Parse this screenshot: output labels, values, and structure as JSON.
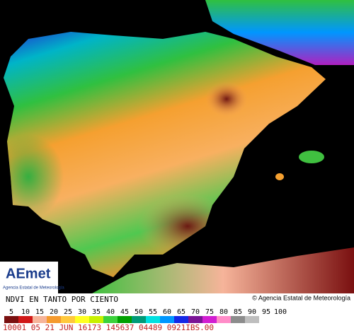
{
  "logo": {
    "name": "AEmet",
    "subtitle": "Agencia Estatal de Meteorología"
  },
  "credit": "© Agencia Estatal de Meteorología",
  "legend": {
    "title": "NDVI EN TANTO POR CIENTO",
    "items": [
      {
        "label": 5,
        "color": "#7a1010"
      },
      {
        "label": 10,
        "color": "#d01818"
      },
      {
        "label": 15,
        "color": "#f6b49a"
      },
      {
        "label": 20,
        "color": "#f59a2e"
      },
      {
        "label": 25,
        "color": "#ffc83c"
      },
      {
        "label": 30,
        "color": "#ffff20"
      },
      {
        "label": 35,
        "color": "#c8f000"
      },
      {
        "label": 40,
        "color": "#3cd23c"
      },
      {
        "label": 45,
        "color": "#00a000"
      },
      {
        "label": 50,
        "color": "#009a78"
      },
      {
        "label": 55,
        "color": "#00e0e0"
      },
      {
        "label": 60,
        "color": "#0096ff"
      },
      {
        "label": 65,
        "color": "#1428e6"
      },
      {
        "label": 70,
        "color": "#7a1496"
      },
      {
        "label": 75,
        "color": "#d21ed2"
      },
      {
        "label": 80,
        "color": "#ff8cc8"
      },
      {
        "label": 85,
        "color": "#8c8c8c"
      },
      {
        "label": 90,
        "color": "#bebebe"
      },
      {
        "label": 95,
        "color": "#ffffff"
      },
      {
        "label": 100,
        "color": null
      }
    ]
  },
  "footer": "10001   05   21 JUN 16173 145637 04489 0921IBS.00"
}
